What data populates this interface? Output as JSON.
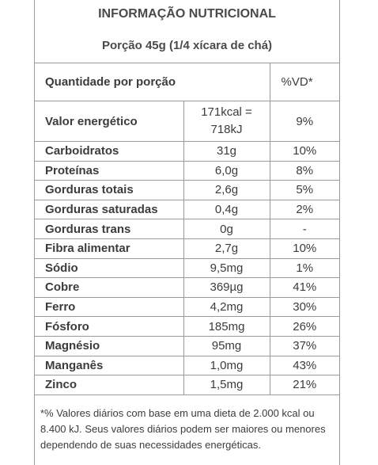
{
  "title": "INFORMAÇÃO NUTRICIONAL",
  "portion": "Porção 45g (1/4 xícara de chá)",
  "header": {
    "label": "Quantidade por porção",
    "vd": "%VD*"
  },
  "energy": {
    "label": "Valor energético",
    "kcal": "171kcal =",
    "kj": "718kJ",
    "vd": "9%"
  },
  "rows": [
    {
      "label": "Carboidratos",
      "value": "31g",
      "vd": "10%"
    },
    {
      "label": "Proteínas",
      "value": "6,0g",
      "vd": "8%"
    },
    {
      "label": "Gorduras totais",
      "value": "2,6g",
      "vd": "5%"
    },
    {
      "label": "Gorduras saturadas",
      "value": "0,4g",
      "vd": "2%"
    },
    {
      "label": "Gorduras trans",
      "value": "0g",
      "vd": "-"
    },
    {
      "label": "Fibra alimentar",
      "value": "2,7g",
      "vd": "10%"
    },
    {
      "label": "Sódio",
      "value": "9,5mg",
      "vd": "1%"
    },
    {
      "label": "Cobre",
      "value": "369µg",
      "vd": "41%"
    },
    {
      "label": "Ferro",
      "value": "4,2mg",
      "vd": "30%"
    },
    {
      "label": "Fósforo",
      "value": "185mg",
      "vd": "26%"
    },
    {
      "label": "Magnésio",
      "value": "95mg",
      "vd": "37%"
    },
    {
      "label": "Manganês",
      "value": "1,0mg",
      "vd": "43%"
    },
    {
      "label": "Zinco",
      "value": "1,5mg",
      "vd": "21%"
    }
  ],
  "footnote": "*% Valores diários com base em uma dieta de 2.000 kcal ou 8.400 kJ. Seus valores diários podem ser maiores ou menores dependendo de suas necessidades energéticas."
}
